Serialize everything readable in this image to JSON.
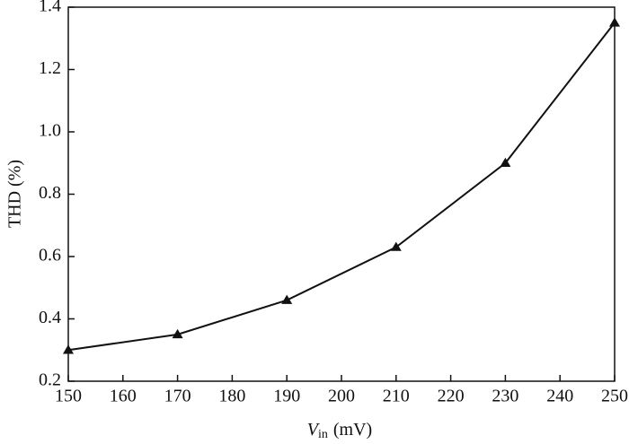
{
  "chart_data": {
    "type": "line",
    "x_label": {
      "symbol": "V",
      "subscript": "in",
      "unit": "(mV)"
    },
    "y_label": "THD (%)",
    "x": [
      150,
      170,
      190,
      210,
      230,
      250
    ],
    "series": [
      {
        "color": "#111111",
        "values": [
          0.3,
          0.35,
          0.46,
          0.63,
          0.9,
          1.35
        ]
      }
    ],
    "xlim": [
      150,
      250
    ],
    "ylim": [
      0.2,
      1.4
    ],
    "xticks": [
      150,
      160,
      170,
      180,
      190,
      200,
      210,
      220,
      230,
      240,
      250
    ],
    "yticks": [
      0.2,
      0.4,
      0.6,
      0.8,
      {
        "value": 1,
        "label": "1.0"
      },
      1.2,
      1.4
    ],
    "grid": false,
    "marker": "triangle"
  }
}
